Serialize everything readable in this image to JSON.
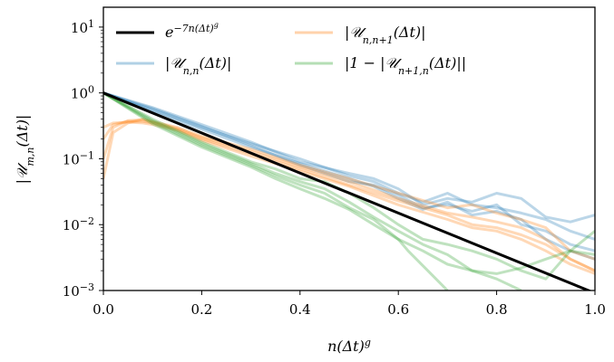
{
  "chart_data": {
    "type": "line",
    "xlabel": "n(Δt)^g",
    "ylabel": "|U_{m,n}(Δt)|",
    "xlim": [
      0,
      1
    ],
    "ylim": [
      0.001,
      20
    ],
    "yscale": "log",
    "x_ticks": [
      "0.0",
      "0.2",
      "0.4",
      "0.6",
      "0.8",
      "1.0"
    ],
    "y_ticks": [
      {
        "value": 0.001,
        "exp": "−3"
      },
      {
        "value": 0.01,
        "exp": "−2"
      },
      {
        "value": 0.1,
        "exp": "−1"
      },
      {
        "value": 1,
        "exp": "0"
      },
      {
        "value": 10,
        "exp": "1"
      }
    ],
    "legend_position": "top",
    "series": [
      {
        "name": "e^{−7n(Δt)^g}",
        "color": "#000000",
        "style": "thick",
        "x": [
          0,
          1
        ],
        "y": [
          1,
          0.000912
        ]
      },
      {
        "name": "|U_{n,n}(Δt)|",
        "color": "#1f77b4",
        "style": "faded",
        "curves": [
          {
            "x": [
              0,
              0.1,
              0.2,
              0.3,
              0.4,
              0.5,
              0.55,
              0.6,
              0.65,
              0.7,
              0.75,
              0.8,
              0.85,
              0.9,
              0.95,
              1.0
            ],
            "y": [
              1,
              0.6,
              0.33,
              0.18,
              0.09,
              0.06,
              0.05,
              0.035,
              0.02,
              0.025,
              0.022,
              0.03,
              0.025,
              0.013,
              0.011,
              0.014
            ]
          },
          {
            "x": [
              0,
              0.1,
              0.2,
              0.3,
              0.4,
              0.5,
              0.55,
              0.6,
              0.65,
              0.7,
              0.75,
              0.8,
              0.85,
              0.9,
              0.95,
              1.0
            ],
            "y": [
              1,
              0.55,
              0.3,
              0.17,
              0.1,
              0.055,
              0.045,
              0.03,
              0.022,
              0.03,
              0.02,
              0.018,
              0.015,
              0.012,
              0.008,
              0.006
            ]
          },
          {
            "x": [
              0,
              0.1,
              0.2,
              0.3,
              0.4,
              0.5,
              0.55,
              0.6,
              0.65,
              0.7,
              0.75,
              0.8,
              0.85,
              0.9,
              0.95,
              1.0
            ],
            "y": [
              1,
              0.58,
              0.31,
              0.16,
              0.08,
              0.045,
              0.04,
              0.028,
              0.018,
              0.02,
              0.016,
              0.02,
              0.01,
              0.008,
              0.005,
              0.004
            ]
          },
          {
            "x": [
              0,
              0.1,
              0.2,
              0.3,
              0.4,
              0.5,
              0.55,
              0.6,
              0.65,
              0.7,
              0.75,
              0.8,
              0.85,
              0.9,
              0.95,
              1.0
            ],
            "y": [
              1,
              0.52,
              0.28,
              0.15,
              0.085,
              0.05,
              0.038,
              0.025,
              0.017,
              0.022,
              0.014,
              0.016,
              0.012,
              0.006,
              0.004,
              0.003
            ]
          }
        ]
      },
      {
        "name": "|U_{n,n+1}(Δt)|",
        "color": "#ff7f0e",
        "style": "faded",
        "curves": [
          {
            "x": [
              0,
              0.02,
              0.05,
              0.08,
              0.1,
              0.15,
              0.2,
              0.3,
              0.4,
              0.5,
              0.6,
              0.7,
              0.75,
              0.8,
              0.85,
              0.9,
              0.95,
              1.0
            ],
            "y": [
              0.05,
              0.25,
              0.35,
              0.4,
              0.37,
              0.3,
              0.22,
              0.14,
              0.08,
              0.05,
              0.03,
              0.018,
              0.02,
              0.015,
              0.012,
              0.009,
              0.004,
              0.003
            ]
          },
          {
            "x": [
              0,
              0.02,
              0.05,
              0.08,
              0.1,
              0.15,
              0.2,
              0.3,
              0.4,
              0.5,
              0.6,
              0.7,
              0.75,
              0.8,
              0.85,
              0.9,
              0.95,
              1.0
            ],
            "y": [
              0.1,
              0.3,
              0.38,
              0.39,
              0.36,
              0.29,
              0.21,
              0.13,
              0.075,
              0.045,
              0.025,
              0.015,
              0.013,
              0.011,
              0.009,
              0.006,
              0.003,
              0.002
            ]
          },
          {
            "x": [
              0,
              0.02,
              0.05,
              0.08,
              0.1,
              0.15,
              0.2,
              0.3,
              0.4,
              0.5,
              0.6,
              0.7,
              0.75,
              0.8,
              0.85,
              0.9,
              0.95,
              1.0
            ],
            "y": [
              0.2,
              0.33,
              0.37,
              0.37,
              0.35,
              0.28,
              0.2,
              0.12,
              0.07,
              0.04,
              0.023,
              0.014,
              0.01,
              0.009,
              0.007,
              0.005,
              0.003,
              0.002
            ]
          },
          {
            "x": [
              0,
              0.02,
              0.05,
              0.08,
              0.1,
              0.15,
              0.2,
              0.3,
              0.4,
              0.5,
              0.6,
              0.7,
              0.75,
              0.8,
              0.85,
              0.9,
              0.95,
              1.0
            ],
            "y": [
              0.3,
              0.35,
              0.36,
              0.35,
              0.33,
              0.27,
              0.19,
              0.11,
              0.065,
              0.038,
              0.02,
              0.012,
              0.009,
              0.008,
              0.006,
              0.004,
              0.0025,
              0.0018
            ]
          }
        ]
      },
      {
        "name": "|1 − |U_{n+1,n}(Δt)||",
        "color": "#2ca02c",
        "style": "faded",
        "curves": [
          {
            "x": [
              0,
              0.1,
              0.2,
              0.3,
              0.35,
              0.4,
              0.45,
              0.5,
              0.55,
              0.6,
              0.65,
              0.7,
              0.75,
              0.8,
              0.85,
              0.9,
              0.95,
              1.0
            ],
            "y": [
              1,
              0.4,
              0.18,
              0.09,
              0.07,
              0.05,
              0.045,
              0.03,
              0.018,
              0.01,
              0.006,
              0.005,
              0.004,
              0.003,
              0.002,
              0.0015,
              0.004,
              0.008
            ]
          },
          {
            "x": [
              0,
              0.1,
              0.2,
              0.3,
              0.35,
              0.4,
              0.45,
              0.5,
              0.55,
              0.6,
              0.65,
              0.7,
              0.75,
              0.8,
              0.85
            ],
            "y": [
              1,
              0.38,
              0.17,
              0.085,
              0.06,
              0.045,
              0.035,
              0.022,
              0.013,
              0.008,
              0.005,
              0.0035,
              0.002,
              0.0015,
              0.001
            ]
          },
          {
            "x": [
              0,
              0.1,
              0.2,
              0.3,
              0.35,
              0.4,
              0.45,
              0.5,
              0.55,
              0.6,
              0.62,
              0.66,
              0.7
            ],
            "y": [
              1,
              0.36,
              0.16,
              0.08,
              0.055,
              0.04,
              0.03,
              0.018,
              0.012,
              0.006,
              0.004,
              0.002,
              0.001
            ]
          },
          {
            "x": [
              0,
              0.1,
              0.2,
              0.3,
              0.35,
              0.4,
              0.45,
              0.5,
              0.55,
              0.6,
              0.65,
              0.7,
              0.75,
              0.8,
              0.85,
              0.9,
              0.95,
              1.0
            ],
            "y": [
              1,
              0.34,
              0.15,
              0.075,
              0.05,
              0.035,
              0.025,
              0.017,
              0.01,
              0.006,
              0.004,
              0.0025,
              0.002,
              0.0018,
              0.0022,
              0.003,
              0.004,
              0.0035
            ]
          }
        ]
      }
    ]
  }
}
